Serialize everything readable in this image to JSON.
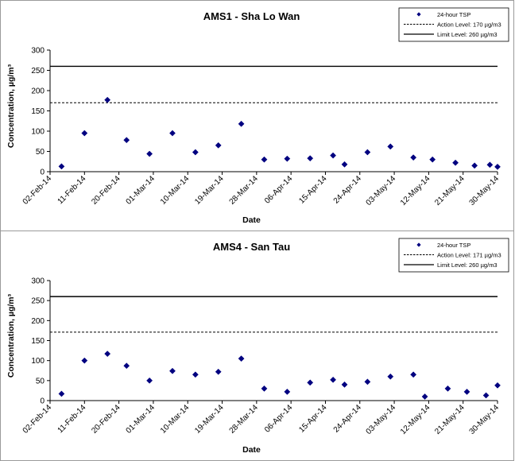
{
  "chart_data": [
    {
      "type": "scatter",
      "title": "AMS1 - Sha Lo Wan",
      "xlabel": "Date",
      "ylabel": "Concentration, µg/m³",
      "ylim": [
        0,
        300
      ],
      "yticks": [
        "0",
        "50",
        "100",
        "150",
        "200",
        "250",
        "300"
      ],
      "xlim": [
        "2014-02-02",
        "2014-05-30"
      ],
      "xticks": [
        "02-Feb-14",
        "11-Feb-14",
        "20-Feb-14",
        "01-Mar-14",
        "10-Mar-14",
        "19-Mar-14",
        "28-Mar-14",
        "06-Apr-14",
        "15-Apr-14",
        "24-Apr-14",
        "03-May-14",
        "12-May-14",
        "21-May-14",
        "30-May-14"
      ],
      "grid": false,
      "legend_position": "top-right",
      "series": [
        {
          "name": "24-hour TSP",
          "marker": "diamond",
          "color": "#000080",
          "points": [
            {
              "x": "2014-02-05",
              "y": 13
            },
            {
              "x": "2014-02-11",
              "y": 95
            },
            {
              "x": "2014-02-17",
              "y": 177
            },
            {
              "x": "2014-02-22",
              "y": 78
            },
            {
              "x": "2014-02-28",
              "y": 44
            },
            {
              "x": "2014-03-06",
              "y": 95
            },
            {
              "x": "2014-03-12",
              "y": 48
            },
            {
              "x": "2014-03-18",
              "y": 65
            },
            {
              "x": "2014-03-24",
              "y": 118
            },
            {
              "x": "2014-03-30",
              "y": 30
            },
            {
              "x": "2014-04-05",
              "y": 32
            },
            {
              "x": "2014-04-11",
              "y": 33
            },
            {
              "x": "2014-04-17",
              "y": 40
            },
            {
              "x": "2014-04-20",
              "y": 18
            },
            {
              "x": "2014-04-26",
              "y": 48
            },
            {
              "x": "2014-05-02",
              "y": 62
            },
            {
              "x": "2014-05-08",
              "y": 35
            },
            {
              "x": "2014-05-13",
              "y": 30
            },
            {
              "x": "2014-05-19",
              "y": 22
            },
            {
              "x": "2014-05-24",
              "y": 15
            },
            {
              "x": "2014-05-28",
              "y": 17
            },
            {
              "x": "2014-05-30",
              "y": 12
            }
          ]
        },
        {
          "name": "Action Level: 170 µg/m3",
          "style": "dashed",
          "color": "#000000",
          "value": 170
        },
        {
          "name": "Limit Level: 260 µg/m3",
          "style": "solid",
          "color": "#000000",
          "value": 260
        }
      ]
    },
    {
      "type": "scatter",
      "title": "AMS4 - San Tau",
      "xlabel": "Date",
      "ylabel": "Concentration, µg/m³",
      "ylim": [
        0,
        300
      ],
      "yticks": [
        "0",
        "50",
        "100",
        "150",
        "200",
        "250",
        "300"
      ],
      "xlim": [
        "2014-02-02",
        "2014-05-30"
      ],
      "xticks": [
        "02-Feb-14",
        "11-Feb-14",
        "20-Feb-14",
        "01-Mar-14",
        "10-Mar-14",
        "19-Mar-14",
        "28-Mar-14",
        "06-Apr-14",
        "15-Apr-14",
        "24-Apr-14",
        "03-May-14",
        "12-May-14",
        "21-May-14",
        "30-May-14"
      ],
      "grid": false,
      "legend_position": "top-right",
      "series": [
        {
          "name": "24-hour TSP",
          "marker": "diamond",
          "color": "#000080",
          "points": [
            {
              "x": "2014-02-05",
              "y": 17
            },
            {
              "x": "2014-02-11",
              "y": 100
            },
            {
              "x": "2014-02-17",
              "y": 117
            },
            {
              "x": "2014-02-22",
              "y": 87
            },
            {
              "x": "2014-02-28",
              "y": 50
            },
            {
              "x": "2014-03-06",
              "y": 74
            },
            {
              "x": "2014-03-12",
              "y": 65
            },
            {
              "x": "2014-03-18",
              "y": 72
            },
            {
              "x": "2014-03-24",
              "y": 105
            },
            {
              "x": "2014-03-30",
              "y": 30
            },
            {
              "x": "2014-04-05",
              "y": 22
            },
            {
              "x": "2014-04-11",
              "y": 45
            },
            {
              "x": "2014-04-17",
              "y": 52
            },
            {
              "x": "2014-04-20",
              "y": 40
            },
            {
              "x": "2014-04-26",
              "y": 47
            },
            {
              "x": "2014-05-02",
              "y": 60
            },
            {
              "x": "2014-05-08",
              "y": 65
            },
            {
              "x": "2014-05-11",
              "y": 10
            },
            {
              "x": "2014-05-17",
              "y": 30
            },
            {
              "x": "2014-05-22",
              "y": 22
            },
            {
              "x": "2014-05-27",
              "y": 13
            },
            {
              "x": "2014-05-30",
              "y": 38
            }
          ]
        },
        {
          "name": "Action Level: 171 µg/m3",
          "style": "dashed",
          "color": "#000000",
          "value": 171
        },
        {
          "name": "Limit Level: 260 µg/m3",
          "style": "solid",
          "color": "#000000",
          "value": 260
        }
      ]
    }
  ]
}
